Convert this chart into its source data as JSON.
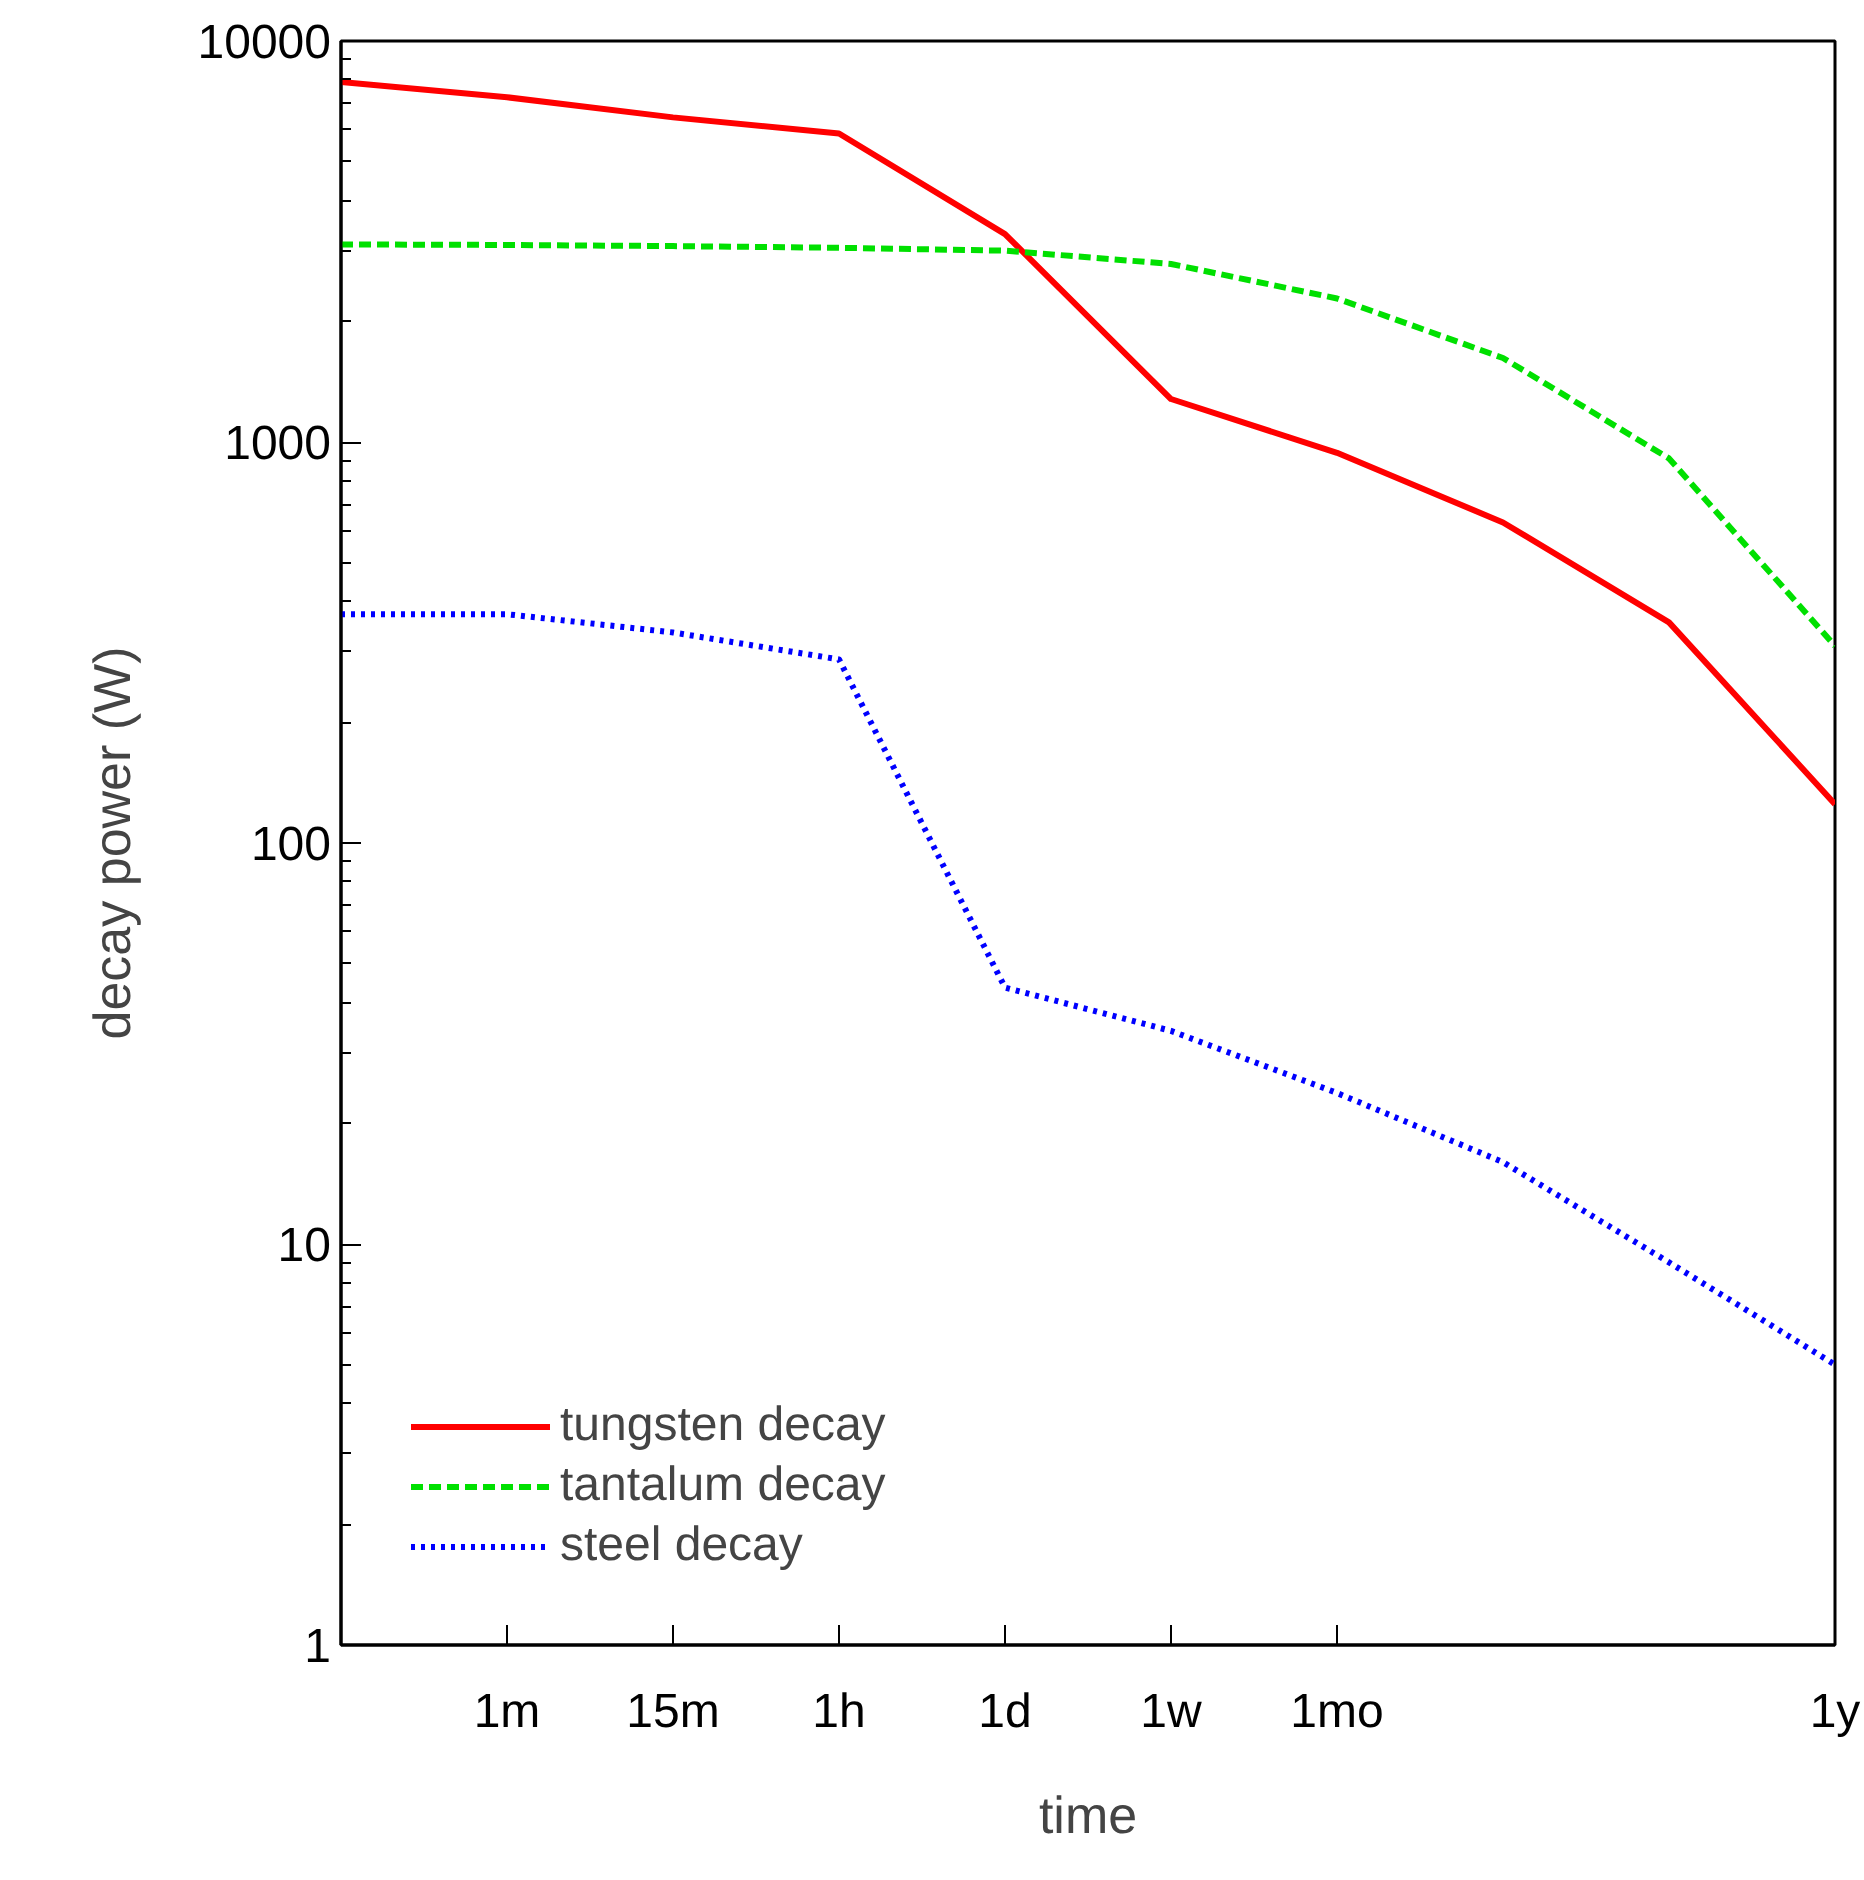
{
  "chart_data": {
    "type": "line",
    "xlabel": "time",
    "ylabel": "decay power (W)",
    "log": "y",
    "grid": false,
    "legend": "bottom left",
    "categories": [
      null,
      "1m",
      "15m",
      "1h",
      "1d",
      "1w",
      "1mo",
      null,
      null,
      "1y"
    ],
    "ylim": [
      1,
      10000
    ],
    "yticks": [
      1,
      10,
      100,
      1000,
      10000
    ],
    "series": [
      {
        "name": "tungsten decay",
        "color": "#ff0000",
        "line_style": "solid",
        "values": [
          7900,
          7240,
          6450,
          5880,
          3300,
          1280,
          940,
          630,
          355,
          125
        ]
      },
      {
        "name": "tantalum decay",
        "color": "#00e000",
        "line_style": "dashed",
        "values": [
          3110,
          3100,
          3080,
          3050,
          3000,
          2780,
          2280,
          1620,
          910,
          310
        ]
      },
      {
        "name": "steel decay",
        "color": "#0000ff",
        "line_style": "dotted",
        "values": [
          372,
          372,
          335,
          287,
          43.6,
          34,
          23.8,
          16,
          9,
          5
        ]
      }
    ]
  }
}
